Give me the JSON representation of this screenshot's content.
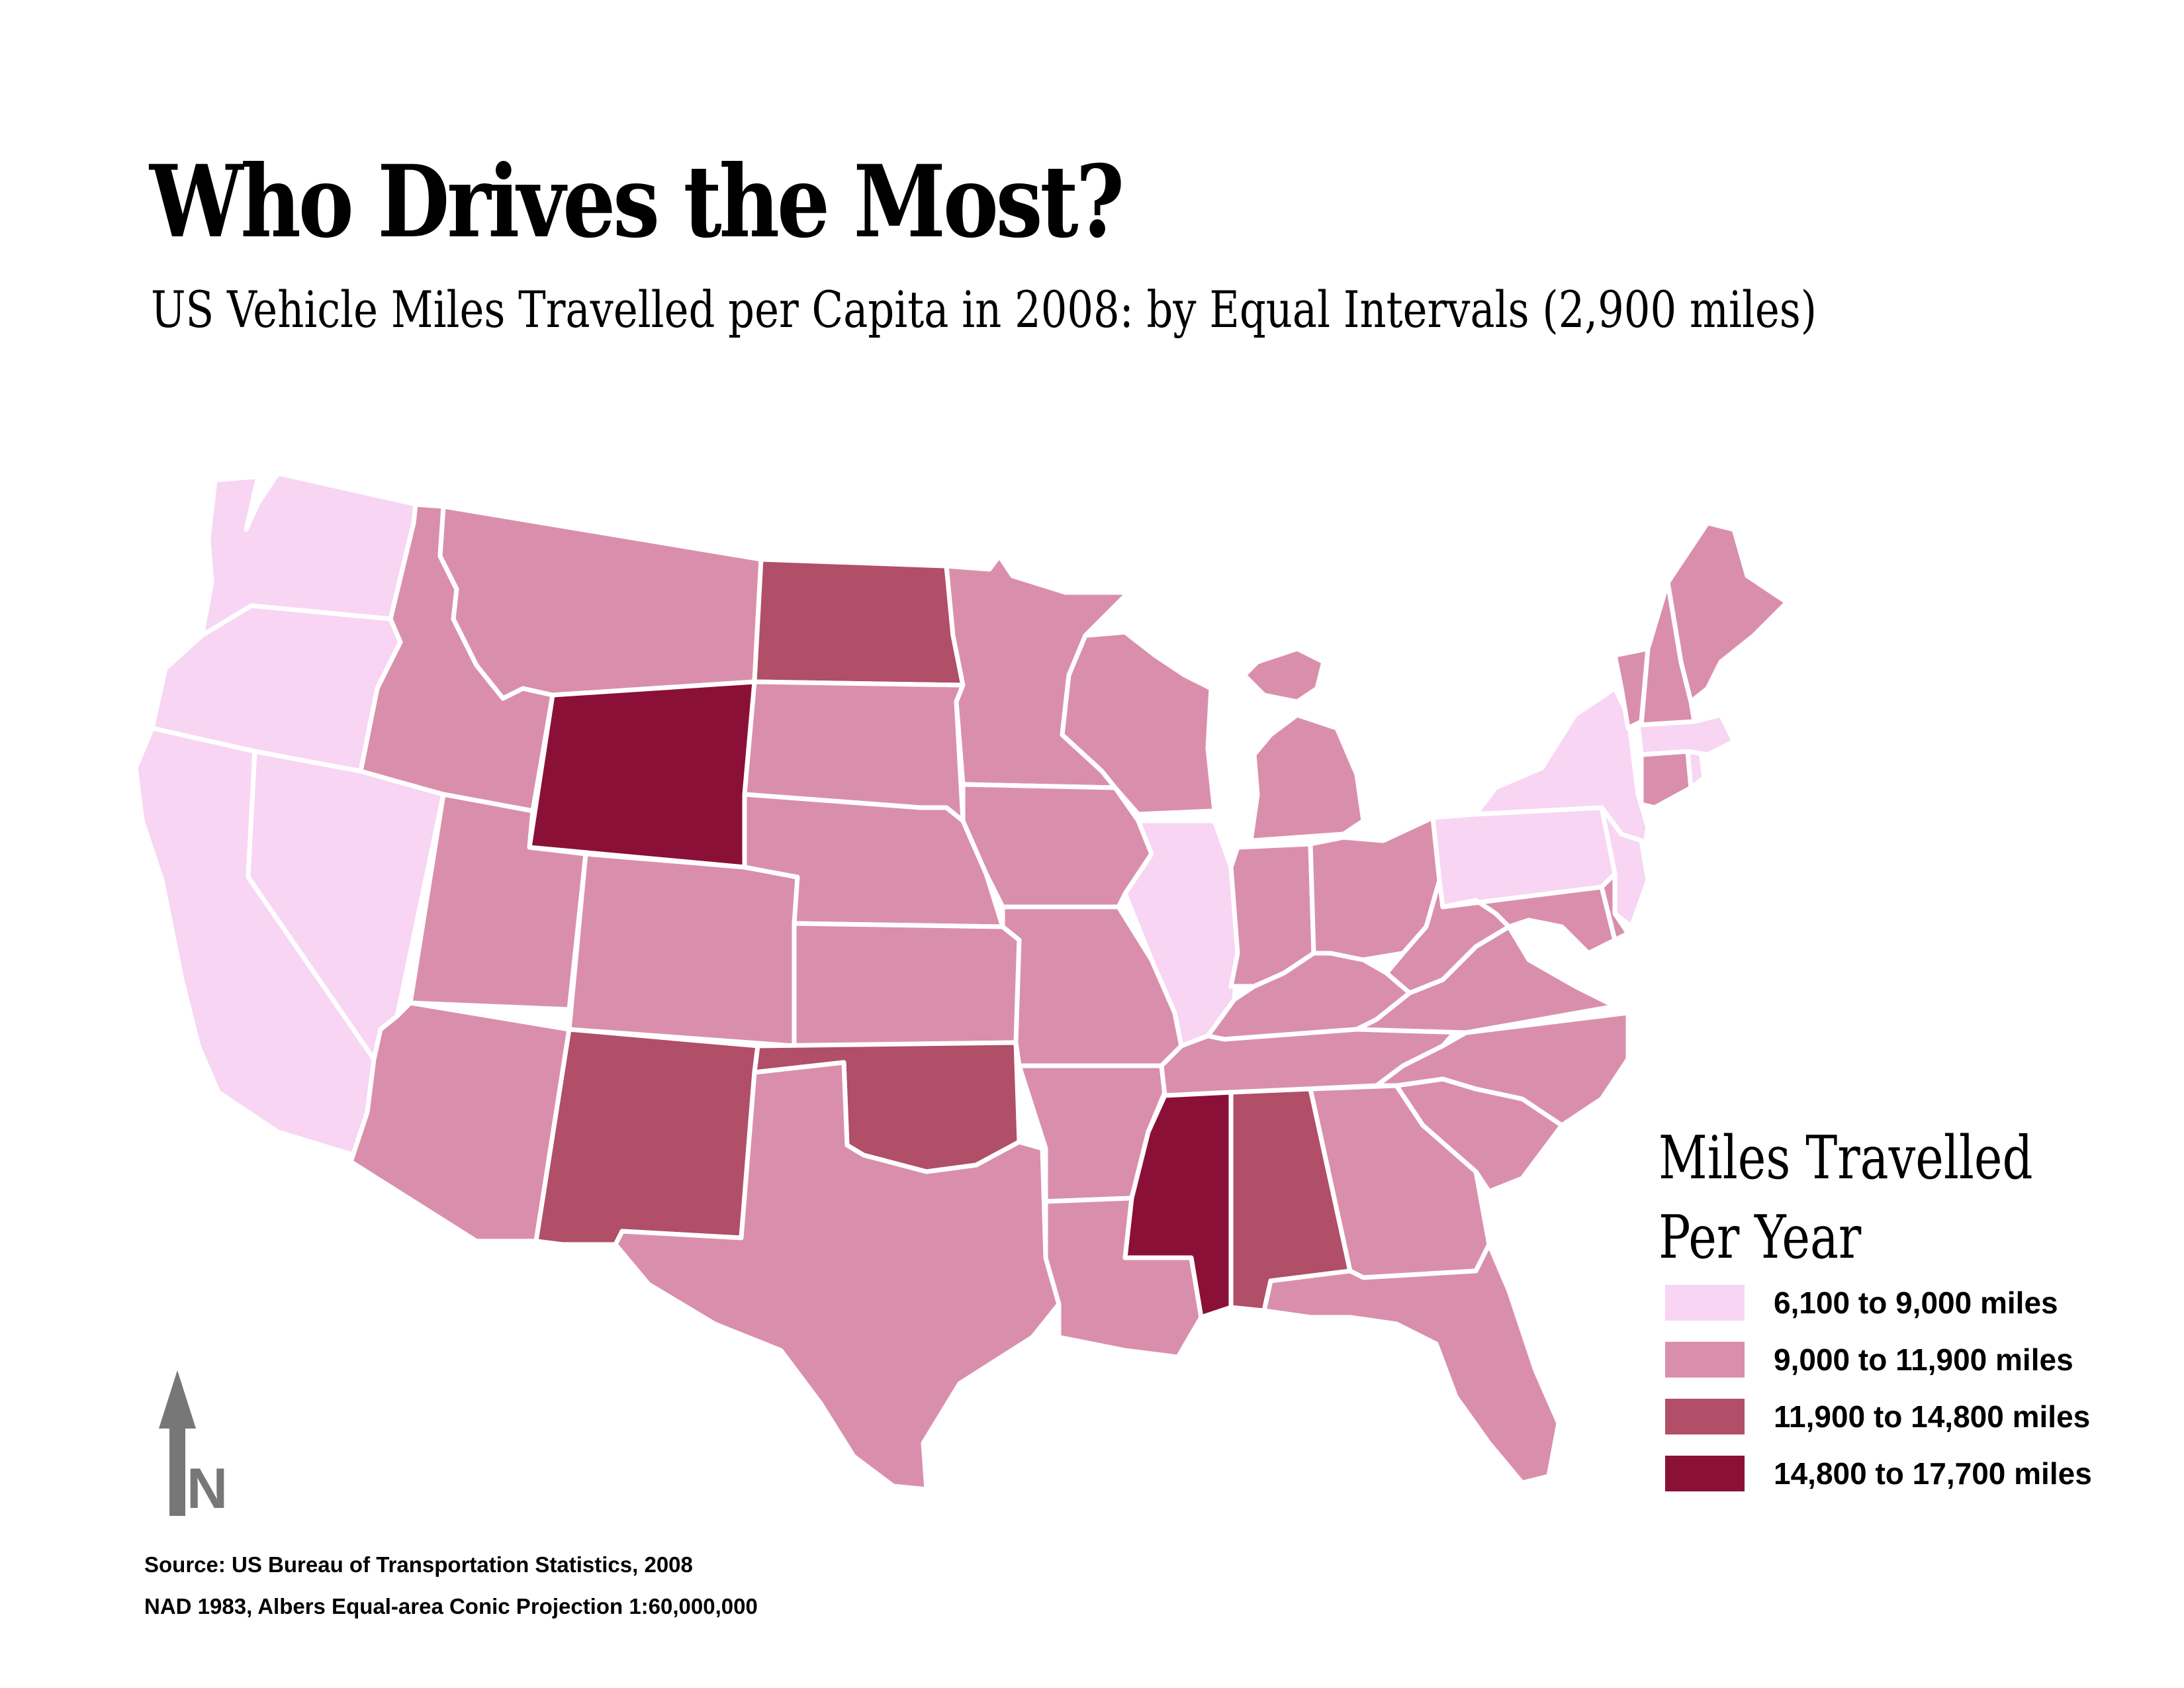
{
  "title": "Who Drives the Most?",
  "subtitle": "US Vehicle Miles Travelled per Capita in 2008: by Equal Intervals (2,900 miles)",
  "legend": {
    "title_line1": "Miles Travelled",
    "title_line2": "Per Year",
    "items": [
      {
        "label": "6,100 to 9,000 miles",
        "color": "#f8d5f3"
      },
      {
        "label": "9,000 to 11,900 miles",
        "color": "#d98fab"
      },
      {
        "label": "11,900 to 14,800 miles",
        "color": "#b14e68"
      },
      {
        "label": "14,800 to 17,700 miles",
        "color": "#8b1038"
      }
    ]
  },
  "north_arrow": {
    "letter": "N"
  },
  "source_line1": "Source: US Bureau of Transportation Statistics, 2008",
  "source_line2": "NAD 1983, Albers Equal-area Conic Projection  1:60,000,000",
  "map_data": {
    "class_breaks": [
      6100,
      9000,
      11900,
      14800,
      17700
    ],
    "states": [
      {
        "id": "WA",
        "class": 0
      },
      {
        "id": "OR",
        "class": 0
      },
      {
        "id": "CA",
        "class": 0
      },
      {
        "id": "NV",
        "class": 0
      },
      {
        "id": "ID",
        "class": 1
      },
      {
        "id": "MT",
        "class": 1
      },
      {
        "id": "WY",
        "class": 3
      },
      {
        "id": "UT",
        "class": 1
      },
      {
        "id": "CO",
        "class": 1
      },
      {
        "id": "AZ",
        "class": 1
      },
      {
        "id": "NM",
        "class": 2
      },
      {
        "id": "ND",
        "class": 2
      },
      {
        "id": "SD",
        "class": 1
      },
      {
        "id": "NE",
        "class": 1
      },
      {
        "id": "KS",
        "class": 1
      },
      {
        "id": "OK",
        "class": 2
      },
      {
        "id": "TX",
        "class": 1
      },
      {
        "id": "MN",
        "class": 1
      },
      {
        "id": "IA",
        "class": 1
      },
      {
        "id": "MO",
        "class": 1
      },
      {
        "id": "AR",
        "class": 1
      },
      {
        "id": "LA",
        "class": 1
      },
      {
        "id": "WI",
        "class": 1
      },
      {
        "id": "IL",
        "class": 0
      },
      {
        "id": "MI",
        "class": 1
      },
      {
        "id": "IN",
        "class": 1
      },
      {
        "id": "OH",
        "class": 1
      },
      {
        "id": "KY",
        "class": 1
      },
      {
        "id": "TN",
        "class": 1
      },
      {
        "id": "MS",
        "class": 3
      },
      {
        "id": "AL",
        "class": 2
      },
      {
        "id": "GA",
        "class": 1
      },
      {
        "id": "FL",
        "class": 1
      },
      {
        "id": "SC",
        "class": 1
      },
      {
        "id": "NC",
        "class": 1
      },
      {
        "id": "VA",
        "class": 1
      },
      {
        "id": "WV",
        "class": 1
      },
      {
        "id": "PA",
        "class": 0
      },
      {
        "id": "NY",
        "class": 0
      },
      {
        "id": "NJ",
        "class": 0
      },
      {
        "id": "DE",
        "class": 1
      },
      {
        "id": "MD",
        "class": 1
      },
      {
        "id": "CT",
        "class": 1
      },
      {
        "id": "RI",
        "class": 0
      },
      {
        "id": "MA",
        "class": 0
      },
      {
        "id": "VT",
        "class": 1
      },
      {
        "id": "NH",
        "class": 1
      },
      {
        "id": "ME",
        "class": 1
      }
    ]
  }
}
